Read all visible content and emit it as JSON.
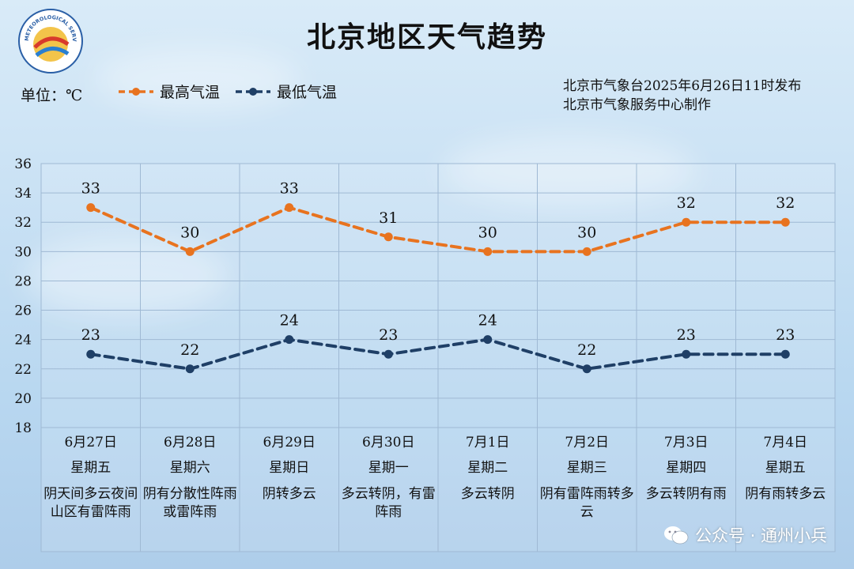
{
  "header": {
    "title": "北京地区天气趋势",
    "unit": "单位：℃",
    "issuer_line1": "北京市气象台2025年6月26日11时发布",
    "issuer_line2": "北京市气象服务中心制作"
  },
  "logo": {
    "text": "METEOROLOGICAL SERVICE 气象服务"
  },
  "legend": {
    "high": "最高气温",
    "low": "最低气温"
  },
  "colors": {
    "high": "#e8731f",
    "low": "#1f3f66",
    "grid": "#9fb9d4"
  },
  "days": [
    {
      "date": "6月27日",
      "weekday": "星期五",
      "weather": "阴天间多云夜间山区有雷阵雨"
    },
    {
      "date": "6月28日",
      "weekday": "星期六",
      "weather": "阴有分散性阵雨或雷阵雨"
    },
    {
      "date": "6月29日",
      "weekday": "星期日",
      "weather": "阴转多云"
    },
    {
      "date": "6月30日",
      "weekday": "星期一",
      "weather": "多云转阴，有雷阵雨"
    },
    {
      "date": "7月1日",
      "weekday": "星期二",
      "weather": "多云转阴"
    },
    {
      "date": "7月2日",
      "weekday": "星期三",
      "weather": "阴有雷阵雨转多云"
    },
    {
      "date": "7月3日",
      "weekday": "星期四",
      "weather": "多云转阴有雨"
    },
    {
      "date": "7月4日",
      "weekday": "星期五",
      "weather": "阴有雨转多云"
    }
  ],
  "chart_data": {
    "type": "line",
    "title": "北京地区天气趋势",
    "ylabel": "",
    "xlabel": "",
    "ylim": [
      18,
      36
    ],
    "yticks": [
      18,
      20,
      22,
      24,
      26,
      28,
      30,
      32,
      34,
      36
    ],
    "grid": true,
    "legend_position": "top-left",
    "categories": [
      "6月27日",
      "6月28日",
      "6月29日",
      "6月30日",
      "7月1日",
      "7月2日",
      "7月3日",
      "7月4日"
    ],
    "series": [
      {
        "name": "最高气温",
        "values": [
          33,
          30,
          33,
          31,
          30,
          30,
          32,
          32
        ]
      },
      {
        "name": "最低气温",
        "values": [
          23,
          22,
          24,
          23,
          24,
          22,
          23,
          23
        ]
      }
    ]
  },
  "watermark": {
    "text": "公众号 · 通州小兵"
  }
}
